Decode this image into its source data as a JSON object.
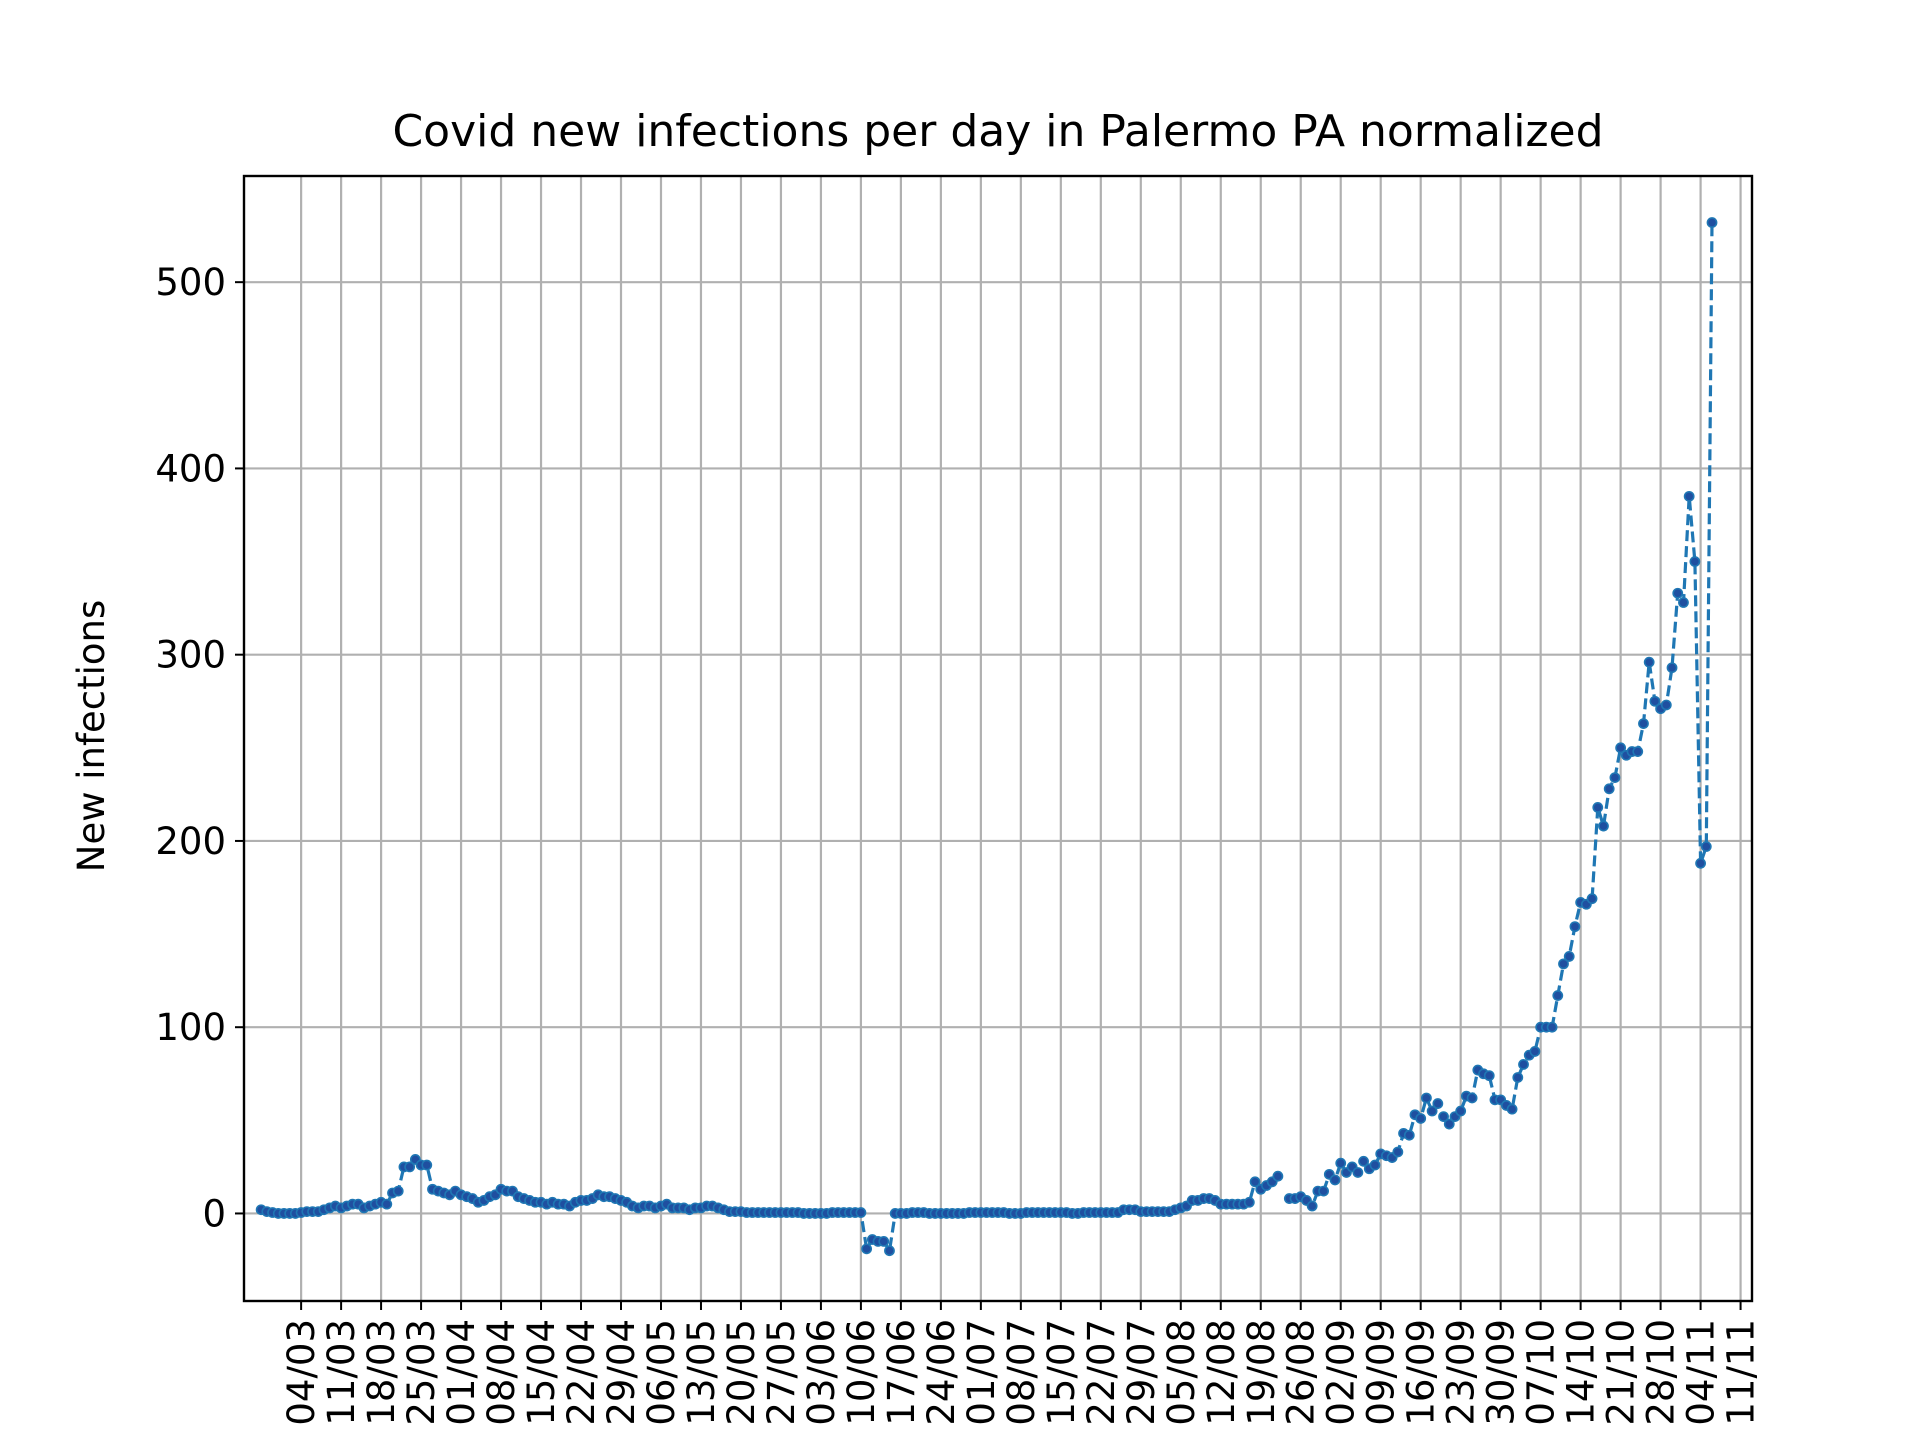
{
  "chart_data": {
    "type": "line",
    "title": "Covid new infections per day in Palermo PA normalized",
    "xlabel": "",
    "ylabel": "New infections",
    "ylim": [
      -47,
      557
    ],
    "xlim": [
      "2020-02-23",
      "2020-11-13"
    ],
    "grid": true,
    "line_style": "dashed",
    "marker": "dot",
    "color": "#1f77b4",
    "marker_color": "#1f4fa0",
    "yticks": [
      0,
      100,
      200,
      300,
      400,
      500
    ],
    "xticks": [
      {
        "date": "2020-03-04",
        "label": "04/03"
      },
      {
        "date": "2020-03-11",
        "label": "11/03"
      },
      {
        "date": "2020-03-18",
        "label": "18/03"
      },
      {
        "date": "2020-03-25",
        "label": "25/03"
      },
      {
        "date": "2020-04-01",
        "label": "01/04"
      },
      {
        "date": "2020-04-08",
        "label": "08/04"
      },
      {
        "date": "2020-04-15",
        "label": "15/04"
      },
      {
        "date": "2020-04-22",
        "label": "22/04"
      },
      {
        "date": "2020-04-29",
        "label": "29/04"
      },
      {
        "date": "2020-05-06",
        "label": "06/05"
      },
      {
        "date": "2020-05-13",
        "label": "13/05"
      },
      {
        "date": "2020-05-20",
        "label": "20/05"
      },
      {
        "date": "2020-05-27",
        "label": "27/05"
      },
      {
        "date": "2020-06-03",
        "label": "03/06"
      },
      {
        "date": "2020-06-10",
        "label": "10/06"
      },
      {
        "date": "2020-06-17",
        "label": "17/06"
      },
      {
        "date": "2020-06-24",
        "label": "24/06"
      },
      {
        "date": "2020-07-01",
        "label": "01/07"
      },
      {
        "date": "2020-07-08",
        "label": "08/07"
      },
      {
        "date": "2020-07-15",
        "label": "15/07"
      },
      {
        "date": "2020-07-22",
        "label": "22/07"
      },
      {
        "date": "2020-07-29",
        "label": "29/07"
      },
      {
        "date": "2020-08-05",
        "label": "05/08"
      },
      {
        "date": "2020-08-12",
        "label": "12/08"
      },
      {
        "date": "2020-08-19",
        "label": "19/08"
      },
      {
        "date": "2020-08-26",
        "label": "26/08"
      },
      {
        "date": "2020-09-02",
        "label": "02/09"
      },
      {
        "date": "2020-09-09",
        "label": "09/09"
      },
      {
        "date": "2020-09-16",
        "label": "16/09"
      },
      {
        "date": "2020-09-23",
        "label": "23/09"
      },
      {
        "date": "2020-09-30",
        "label": "30/09"
      },
      {
        "date": "2020-10-07",
        "label": "07/10"
      },
      {
        "date": "2020-10-14",
        "label": "14/10"
      },
      {
        "date": "2020-10-21",
        "label": "21/10"
      },
      {
        "date": "2020-10-28",
        "label": "28/10"
      },
      {
        "date": "2020-11-04",
        "label": "04/11"
      },
      {
        "date": "2020-11-11",
        "label": "11/11"
      }
    ],
    "series": [
      {
        "start_date": "2020-02-26",
        "values": [
          2,
          1,
          0.5,
          0,
          0,
          0,
          0,
          0.5,
          1,
          1,
          1,
          2,
          3,
          4,
          3,
          4,
          5,
          5,
          3,
          4,
          5,
          6,
          5,
          11,
          12,
          25,
          25,
          29,
          26,
          26,
          13,
          12,
          11,
          10,
          12,
          10,
          9,
          8,
          6,
          7,
          9,
          10,
          13,
          12,
          12,
          9,
          8,
          7,
          6,
          6,
          5,
          6,
          5,
          5,
          4,
          6,
          7,
          7,
          8,
          10,
          9,
          9,
          8,
          7,
          6,
          4,
          3,
          4,
          4,
          3,
          4,
          5,
          3,
          3,
          3,
          2,
          3,
          3,
          4,
          4,
          3,
          2,
          1,
          1,
          1,
          0.5,
          0.5,
          0.5,
          0.5,
          0.5,
          0.5,
          0.5,
          0.5,
          0.5,
          0.5,
          0,
          0,
          0,
          0,
          0,
          0.5,
          0.5,
          0.5,
          0.5,
          0.5,
          0.5,
          -19,
          -14,
          -15,
          -15,
          -20,
          0,
          0,
          0,
          0.5,
          0.5,
          0.5,
          0,
          0,
          0,
          0,
          0,
          0,
          0,
          0.5,
          0.5,
          0.5,
          0.5,
          0.5,
          0.5,
          0.5,
          0,
          0,
          0,
          0.5,
          0.5,
          0.5,
          0.5,
          0.5,
          0.5,
          0.5,
          0.5,
          0,
          0,
          0.5,
          0.5,
          0.5,
          0.5,
          0.5,
          0.5,
          0.5,
          2,
          2,
          2,
          1,
          1,
          1,
          1,
          1,
          1,
          2,
          3,
          4,
          7,
          7,
          8,
          8,
          7,
          5,
          5,
          5,
          5,
          5,
          6,
          17,
          13,
          15,
          17,
          20,
          null,
          8,
          8,
          9,
          7,
          4,
          12,
          12,
          21,
          18,
          27,
          22,
          25,
          22,
          28,
          24,
          26,
          32,
          31,
          30,
          33,
          43,
          42,
          53,
          51,
          62,
          55,
          59,
          52,
          48,
          52,
          55,
          63,
          62,
          77,
          75,
          74,
          61,
          61,
          58,
          56,
          73,
          80,
          85,
          87,
          100,
          100,
          100,
          117,
          134,
          138,
          154,
          167,
          166,
          169,
          218,
          208,
          228,
          234,
          250,
          246,
          248,
          248,
          263,
          296,
          275,
          271,
          273,
          293,
          333,
          328,
          385,
          350,
          188,
          197,
          532
        ]
      }
    ]
  }
}
